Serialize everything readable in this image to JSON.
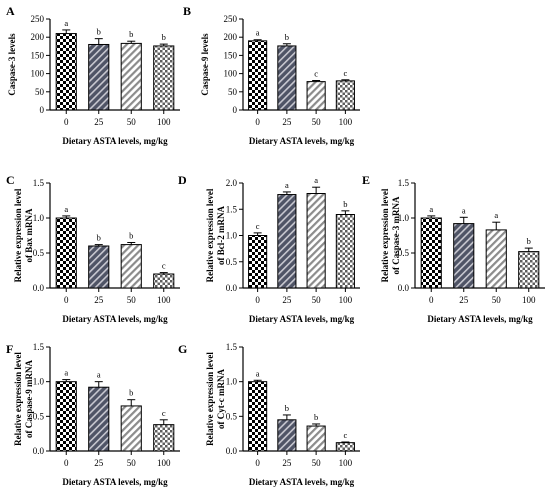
{
  "chart_data": [
    {
      "id": "A",
      "panel_label": "A",
      "type": "bar",
      "xlabel": "Dietary ASTA levels, mg/kg",
      "ylabel": [
        "Caspase-3 levels"
      ],
      "categories": [
        "0",
        "25",
        "50",
        "100"
      ],
      "values": [
        210,
        180,
        183,
        176
      ],
      "errors": [
        10,
        16,
        6,
        5
      ],
      "significance": [
        "a",
        "b",
        "b",
        "b"
      ],
      "ylim": [
        0,
        250
      ],
      "yticks": [
        0,
        50,
        100,
        150,
        200,
        250
      ],
      "ytick_labels": [
        "0",
        "50",
        "100",
        "150",
        "200",
        "250"
      ]
    },
    {
      "id": "B",
      "panel_label": "B",
      "type": "bar",
      "xlabel": "Dietary ASTA levels, mg/kg",
      "ylabel": [
        "Caspase-9 levels"
      ],
      "categories": [
        "0",
        "25",
        "50",
        "100"
      ],
      "values": [
        190,
        176,
        78,
        80
      ],
      "errors": [
        3,
        6,
        3,
        3
      ],
      "significance": [
        "a",
        "b",
        "c",
        "c"
      ],
      "ylim": [
        0,
        250
      ],
      "yticks": [
        0,
        50,
        100,
        150,
        200,
        250
      ],
      "ytick_labels": [
        "0",
        "50",
        "100",
        "150",
        "200",
        "250"
      ]
    },
    {
      "id": "C",
      "panel_label": "C",
      "type": "bar",
      "xlabel": "Dietary ASTA levels, mg/kg",
      "ylabel": [
        "Relative expression level",
        "of Bax mRNA"
      ],
      "categories": [
        "0",
        "25",
        "50",
        "100"
      ],
      "values": [
        1.0,
        0.6,
        0.62,
        0.2
      ],
      "errors": [
        0.03,
        0.02,
        0.03,
        0.02
      ],
      "significance": [
        "a",
        "b",
        "b",
        "c"
      ],
      "ylim": [
        0,
        1.5
      ],
      "yticks": [
        0,
        0.5,
        1.0,
        1.5
      ],
      "ytick_labels": [
        "0.0",
        "0.5",
        "1.0",
        "1.5"
      ]
    },
    {
      "id": "D",
      "panel_label": "D",
      "type": "bar",
      "xlabel": "Dietary ASTA levels, mg/kg",
      "ylabel": [
        "Relative expression level",
        "of Bcl-2 mRNA"
      ],
      "categories": [
        "0",
        "25",
        "50",
        "100"
      ],
      "values": [
        1.0,
        1.78,
        1.8,
        1.4
      ],
      "errors": [
        0.05,
        0.05,
        0.12,
        0.07
      ],
      "significance": [
        "c",
        "a",
        "a",
        "b"
      ],
      "ylim": [
        0,
        2.0
      ],
      "yticks": [
        0,
        0.5,
        1.0,
        1.5,
        2.0
      ],
      "ytick_labels": [
        "0.0",
        "0.5",
        "1.0",
        "1.5",
        "2.0"
      ]
    },
    {
      "id": "E",
      "panel_label": "E",
      "type": "bar",
      "xlabel": "Dietary ASTA levels, mg/kg",
      "ylabel": [
        "Relative expression level",
        "of Caspase-3 mRNA"
      ],
      "categories": [
        "0",
        "25",
        "50",
        "100"
      ],
      "values": [
        1.0,
        0.92,
        0.83,
        0.52
      ],
      "errors": [
        0.03,
        0.09,
        0.11,
        0.05
      ],
      "significance": [
        "a",
        "a",
        "a",
        "b"
      ],
      "ylim": [
        0,
        1.5
      ],
      "yticks": [
        0,
        0.5,
        1.0,
        1.5
      ],
      "ytick_labels": [
        "0.0",
        "0.5",
        "1.0",
        "1.5"
      ]
    },
    {
      "id": "F",
      "panel_label": "F",
      "type": "bar",
      "xlabel": "Dietary ASTA levels, mg/kg",
      "ylabel": [
        "Relative expression level",
        "of Caspase-9 mRNA"
      ],
      "categories": [
        "0",
        "25",
        "50",
        "100"
      ],
      "values": [
        1.0,
        0.92,
        0.65,
        0.38
      ],
      "errors": [
        0.03,
        0.08,
        0.09,
        0.07
      ],
      "significance": [
        "a",
        "a",
        "b",
        "c"
      ],
      "ylim": [
        0,
        1.5
      ],
      "yticks": [
        0,
        0.5,
        1.0,
        1.5
      ],
      "ytick_labels": [
        "0.0",
        "0.5",
        "1.0",
        "1.5"
      ]
    },
    {
      "id": "G",
      "panel_label": "G",
      "type": "bar",
      "xlabel": "Dietary ASTA levels, mg/kg",
      "ylabel": [
        "Relative expression level",
        "of Cyt-c mRNA"
      ],
      "categories": [
        "0",
        "25",
        "50",
        "100"
      ],
      "values": [
        1.0,
        0.45,
        0.36,
        0.12
      ],
      "errors": [
        0.02,
        0.07,
        0.03,
        0.01
      ],
      "significance": [
        "a",
        "b",
        "b",
        "c"
      ],
      "ylim": [
        0,
        1.5
      ],
      "yticks": [
        0,
        0.5,
        1.0,
        1.5
      ],
      "ytick_labels": [
        "0.0",
        "0.5",
        "1.0",
        "1.5"
      ]
    }
  ],
  "bar_styles": [
    {
      "pattern": "checkerboard",
      "fill": "#ffffff",
      "ink": "#000000"
    },
    {
      "pattern": "dark-diagonal",
      "fill": "#5a5f70",
      "ink": "#ffffff"
    },
    {
      "pattern": "light-diagonal",
      "fill": "#ffffff",
      "ink": "#9a9a9a"
    },
    {
      "pattern": "dotted-checker",
      "fill": "#ffffff",
      "ink": "#6a6a6a"
    }
  ]
}
